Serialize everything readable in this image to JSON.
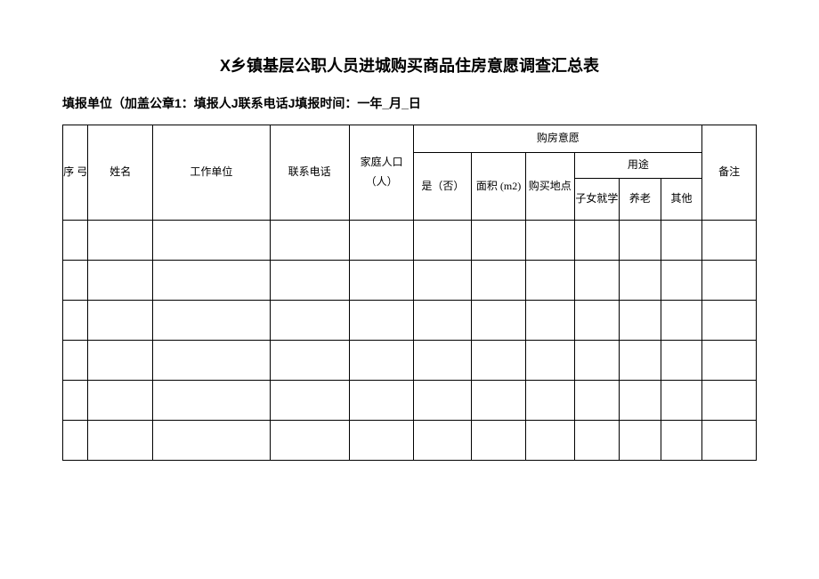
{
  "title": "X乡镇基层公职人员进城购买商品住房意愿调查汇总表",
  "subtitle": "填报单位（加盖公章1：填报人J联系电话J填报时间：一年_月_日",
  "headers": {
    "seq": "序 弓",
    "name": "姓名",
    "unit": "工作单位",
    "phone": "联系电话",
    "population": "家庭人口（人）",
    "intention": "购房意愿",
    "yesno": "是（否）",
    "area": "面积 (m2)",
    "location": "购买地点",
    "usage": "用途",
    "usage_child": "子女就学",
    "usage_old": "养老",
    "usage_other": "其他",
    "note": "备注"
  },
  "empty_rows": 6,
  "colors": {
    "border": "#000000",
    "background": "#ffffff",
    "text": "#000000"
  }
}
